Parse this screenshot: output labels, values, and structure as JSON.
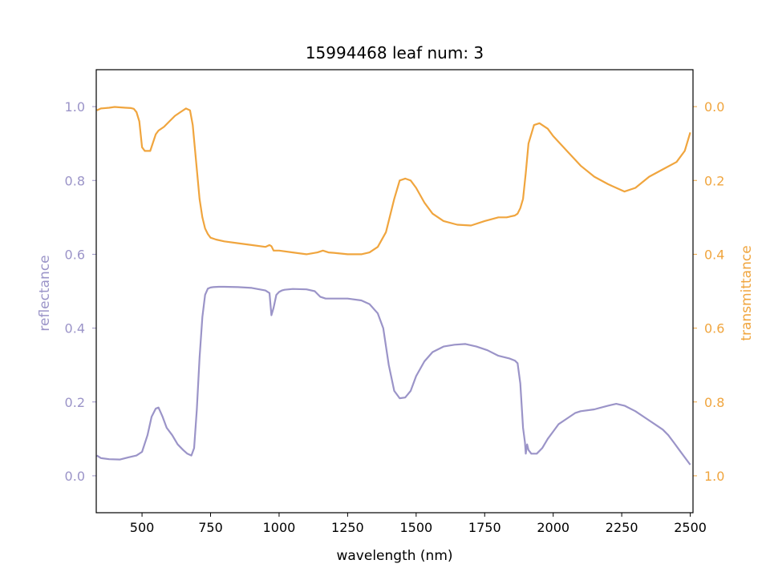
{
  "chart_data": {
    "type": "line",
    "title": "15994468 leaf num: 3",
    "xlabel": "wavelength (nm)",
    "y_left_label": "reflectance",
    "y_right_label": "transmittance",
    "xlim": [
      333,
      2510
    ],
    "ylim_left": [
      -0.1,
      1.1
    ],
    "ylim_right_inverted": [
      1.1,
      -0.1
    ],
    "grid": false,
    "x_ticks": [
      500,
      750,
      1000,
      1250,
      1500,
      1750,
      2000,
      2250,
      2500
    ],
    "x_tick_labels": [
      "500",
      "750",
      "1000",
      "1250",
      "1500",
      "1750",
      "2000",
      "2250",
      "2500"
    ],
    "y_left_ticks": [
      0.0,
      0.2,
      0.4,
      0.6,
      0.8,
      1.0
    ],
    "y_left_tick_labels": [
      "0.0",
      "0.2",
      "0.4",
      "0.6",
      "0.8",
      "1.0"
    ],
    "y_right_ticks": [
      0.0,
      0.2,
      0.4,
      0.6,
      0.8,
      1.0
    ],
    "y_right_tick_labels": [
      "0.0",
      "0.2",
      "0.4",
      "0.6",
      "0.8",
      "1.0"
    ],
    "colors": {
      "reflectance": "#9b94c8",
      "transmittance": "#f0a53e",
      "axis": "#000000"
    },
    "series": [
      {
        "axis": "left",
        "x": [
          335,
          350,
          380,
          420,
          450,
          480,
          500,
          520,
          535,
          550,
          560,
          575,
          590,
          610,
          630,
          650,
          665,
          680,
          690,
          700,
          710,
          720,
          730,
          740,
          750,
          760,
          780,
          800,
          850,
          900,
          950,
          965,
          972,
          980,
          990,
          1000,
          1010,
          1020,
          1050,
          1100,
          1130,
          1150,
          1170,
          1200,
          1250,
          1300,
          1330,
          1360,
          1380,
          1400,
          1420,
          1440,
          1460,
          1480,
          1500,
          1530,
          1560,
          1600,
          1640,
          1680,
          1720,
          1760,
          1800,
          1840,
          1860,
          1870,
          1880,
          1890,
          1897,
          1900,
          1905,
          1910,
          1920,
          1940,
          1960,
          1980,
          2000,
          2020,
          2050,
          2080,
          2100,
          2150,
          2200,
          2230,
          2260,
          2300,
          2340,
          2380,
          2400,
          2420,
          2440,
          2460,
          2480,
          2500
        ],
        "y": [
          0.055,
          0.048,
          0.045,
          0.044,
          0.05,
          0.055,
          0.065,
          0.11,
          0.16,
          0.182,
          0.185,
          0.16,
          0.13,
          0.11,
          0.085,
          0.07,
          0.06,
          0.055,
          0.075,
          0.18,
          0.32,
          0.43,
          0.49,
          0.507,
          0.51,
          0.511,
          0.512,
          0.512,
          0.511,
          0.509,
          0.502,
          0.495,
          0.435,
          0.455,
          0.49,
          0.498,
          0.502,
          0.504,
          0.506,
          0.505,
          0.5,
          0.485,
          0.48,
          0.48,
          0.48,
          0.475,
          0.465,
          0.44,
          0.4,
          0.3,
          0.23,
          0.21,
          0.212,
          0.23,
          0.27,
          0.31,
          0.335,
          0.35,
          0.355,
          0.357,
          0.35,
          0.34,
          0.325,
          0.318,
          0.312,
          0.305,
          0.25,
          0.13,
          0.09,
          0.06,
          0.085,
          0.07,
          0.06,
          0.06,
          0.075,
          0.1,
          0.12,
          0.14,
          0.155,
          0.17,
          0.175,
          0.18,
          0.19,
          0.195,
          0.19,
          0.175,
          0.155,
          0.135,
          0.125,
          0.11,
          0.09,
          0.07,
          0.05,
          0.03
        ]
      },
      {
        "axis": "right",
        "x": [
          335,
          350,
          380,
          400,
          420,
          440,
          460,
          470,
          480,
          490,
          500,
          510,
          530,
          550,
          560,
          580,
          600,
          620,
          640,
          660,
          675,
          685,
          690,
          700,
          710,
          720,
          730,
          740,
          750,
          770,
          800,
          850,
          900,
          950,
          965,
          972,
          980,
          1000,
          1050,
          1100,
          1140,
          1160,
          1180,
          1200,
          1250,
          1300,
          1330,
          1360,
          1390,
          1420,
          1440,
          1460,
          1480,
          1500,
          1530,
          1560,
          1600,
          1650,
          1700,
          1750,
          1800,
          1830,
          1860,
          1870,
          1880,
          1890,
          1900,
          1910,
          1930,
          1950,
          1980,
          2000,
          2050,
          2100,
          2150,
          2200,
          2230,
          2260,
          2300,
          2350,
          2400,
          2450,
          2480,
          2500
        ],
        "y": [
          0.01,
          0.005,
          0.003,
          0.001,
          0.002,
          0.003,
          0.004,
          0.006,
          0.015,
          0.04,
          0.11,
          0.12,
          0.12,
          0.075,
          0.065,
          0.055,
          0.04,
          0.025,
          0.015,
          0.005,
          0.01,
          0.05,
          0.09,
          0.17,
          0.25,
          0.3,
          0.33,
          0.345,
          0.355,
          0.36,
          0.365,
          0.37,
          0.375,
          0.38,
          0.375,
          0.378,
          0.39,
          0.39,
          0.395,
          0.4,
          0.395,
          0.39,
          0.395,
          0.396,
          0.4,
          0.4,
          0.395,
          0.38,
          0.34,
          0.25,
          0.2,
          0.195,
          0.2,
          0.22,
          0.26,
          0.29,
          0.31,
          0.32,
          0.322,
          0.31,
          0.3,
          0.3,
          0.295,
          0.29,
          0.275,
          0.25,
          0.18,
          0.1,
          0.05,
          0.045,
          0.06,
          0.08,
          0.12,
          0.16,
          0.19,
          0.21,
          0.22,
          0.23,
          0.22,
          0.19,
          0.17,
          0.15,
          0.12,
          0.07
        ]
      }
    ]
  }
}
